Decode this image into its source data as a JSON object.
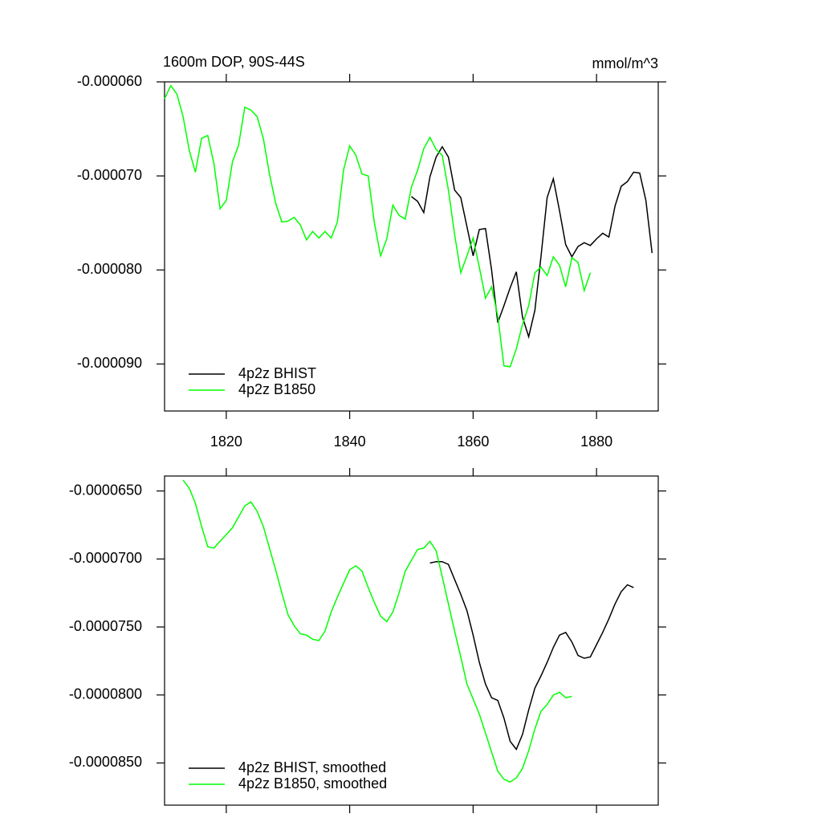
{
  "chart_data": [
    {
      "type": "line",
      "title": "1600m DOP, 90S-44S",
      "units": "mmol/m^3",
      "xlim": [
        1810,
        1890
      ],
      "xticks": [
        1820,
        1840,
        1860,
        1880
      ],
      "xticklabels": true,
      "ylim": [
        -9.5e-05,
        -6e-05
      ],
      "yticks": [
        {
          "value": -6e-05,
          "label": "-0.000060"
        },
        {
          "value": -7e-05,
          "label": "-0.000070"
        },
        {
          "value": -8e-05,
          "label": "-0.000080"
        },
        {
          "value": -9e-05,
          "label": "-0.000090"
        }
      ],
      "legend": "lower left",
      "series": [
        {
          "name": "4p2z BHIST",
          "color": "#000000",
          "x": [
            1850,
            1851,
            1852,
            1853,
            1854,
            1855,
            1856,
            1857,
            1858,
            1859,
            1860,
            1861,
            1862,
            1863,
            1864,
            1865,
            1866,
            1867,
            1868,
            1869,
            1870,
            1871,
            1872,
            1873,
            1874,
            1875,
            1876,
            1877,
            1878,
            1879,
            1880,
            1881,
            1882,
            1883,
            1884,
            1885,
            1886,
            1887,
            1888,
            1889
          ],
          "values": [
            -7.22e-05,
            -7.27e-05,
            -7.39e-05,
            -7.01e-05,
            -6.8e-05,
            -6.69e-05,
            -6.8e-05,
            -7.15e-05,
            -7.23e-05,
            -7.54e-05,
            -7.85e-05,
            -7.57e-05,
            -7.56e-05,
            -8e-05,
            -8.56e-05,
            -8.38e-05,
            -8.19e-05,
            -8.02e-05,
            -8.5e-05,
            -8.71e-05,
            -8.43e-05,
            -7.86e-05,
            -7.23e-05,
            -7.03e-05,
            -7.37e-05,
            -7.73e-05,
            -7.86e-05,
            -7.75e-05,
            -7.71e-05,
            -7.74e-05,
            -7.67e-05,
            -7.61e-05,
            -7.65e-05,
            -7.32e-05,
            -7.11e-05,
            -7.06e-05,
            -6.96e-05,
            -6.97e-05,
            -7.26e-05,
            -7.82e-05
          ]
        },
        {
          "name": "4p2z B1850",
          "color": "#00ff00",
          "x": [
            1810,
            1811,
            1812,
            1813,
            1814,
            1815,
            1816,
            1817,
            1818,
            1819,
            1820,
            1821,
            1822,
            1823,
            1824,
            1825,
            1826,
            1827,
            1828,
            1829,
            1830,
            1831,
            1832,
            1833,
            1834,
            1835,
            1836,
            1837,
            1838,
            1839,
            1840,
            1841,
            1842,
            1843,
            1844,
            1845,
            1846,
            1847,
            1848,
            1849,
            1850,
            1851,
            1852,
            1853,
            1854,
            1855,
            1856,
            1857,
            1858,
            1859,
            1860,
            1861,
            1862,
            1863,
            1864,
            1865,
            1866,
            1867,
            1868,
            1869,
            1870,
            1871,
            1872,
            1873,
            1874,
            1875,
            1876,
            1877,
            1878,
            1879
          ],
          "values": [
            -6.18e-05,
            -6.04e-05,
            -6.13e-05,
            -6.37e-05,
            -6.73e-05,
            -6.96e-05,
            -6.6e-05,
            -6.57e-05,
            -6.87e-05,
            -7.35e-05,
            -7.26e-05,
            -6.85e-05,
            -6.67e-05,
            -6.27e-05,
            -6.3e-05,
            -6.37e-05,
            -6.6e-05,
            -6.98e-05,
            -7.29e-05,
            -7.49e-05,
            -7.48e-05,
            -7.44e-05,
            -7.52e-05,
            -7.68e-05,
            -7.59e-05,
            -7.66e-05,
            -7.59e-05,
            -7.66e-05,
            -7.49e-05,
            -6.94e-05,
            -6.68e-05,
            -6.78e-05,
            -6.98e-05,
            -7e-05,
            -7.5e-05,
            -7.85e-05,
            -7.67e-05,
            -7.31e-05,
            -7.42e-05,
            -7.46e-05,
            -7.12e-05,
            -6.94e-05,
            -6.71e-05,
            -6.59e-05,
            -6.72e-05,
            -6.78e-05,
            -7.15e-05,
            -7.62e-05,
            -8.03e-05,
            -7.85e-05,
            -7.66e-05,
            -7.97e-05,
            -8.3e-05,
            -8.18e-05,
            -8.49e-05,
            -9.02e-05,
            -9.03e-05,
            -8.84e-05,
            -8.58e-05,
            -8.38e-05,
            -8.03e-05,
            -7.97e-05,
            -8.06e-05,
            -7.86e-05,
            -7.95e-05,
            -8.18e-05,
            -7.87e-05,
            -7.92e-05,
            -8.22e-05,
            -8.03e-05
          ]
        }
      ]
    },
    {
      "type": "line",
      "xlim": [
        1810,
        1890
      ],
      "xticks": [
        1820,
        1840,
        1860,
        1880
      ],
      "xticklabels": false,
      "ylim": [
        -8.81e-05,
        -6.39e-05
      ],
      "yticks": [
        {
          "value": -6.5e-05,
          "label": "-0.0000650"
        },
        {
          "value": -7e-05,
          "label": "-0.0000700"
        },
        {
          "value": -7.5e-05,
          "label": "-0.0000750"
        },
        {
          "value": -8e-05,
          "label": "-0.0000800"
        },
        {
          "value": -8.5e-05,
          "label": "-0.0000850"
        }
      ],
      "legend": "lower left",
      "series": [
        {
          "name": "4p2z BHIST, smoothed",
          "color": "#000000",
          "x": [
            1853,
            1854,
            1855,
            1856,
            1857,
            1858,
            1859,
            1860,
            1861,
            1862,
            1863,
            1864,
            1865,
            1866,
            1867,
            1868,
            1869,
            1870,
            1871,
            1872,
            1873,
            1874,
            1875,
            1876,
            1877,
            1878,
            1879,
            1880,
            1881,
            1882,
            1883,
            1884,
            1885,
            1886
          ],
          "values": [
            -7.03e-05,
            -7.02e-05,
            -7.02e-05,
            -7.04e-05,
            -7.15e-05,
            -7.26e-05,
            -7.38e-05,
            -7.56e-05,
            -7.76e-05,
            -7.92e-05,
            -8.02e-05,
            -8.04e-05,
            -8.17e-05,
            -8.34e-05,
            -8.4e-05,
            -8.29e-05,
            -8.11e-05,
            -7.95e-05,
            -7.86e-05,
            -7.76e-05,
            -7.65e-05,
            -7.56e-05,
            -7.54e-05,
            -7.61e-05,
            -7.71e-05,
            -7.73e-05,
            -7.72e-05,
            -7.63e-05,
            -7.54e-05,
            -7.44e-05,
            -7.33e-05,
            -7.24e-05,
            -7.19e-05,
            -7.21e-05
          ]
        },
        {
          "name": "4p2z B1850, smoothed",
          "color": "#00ff00",
          "x": [
            1813,
            1814,
            1815,
            1816,
            1817,
            1818,
            1819,
            1820,
            1821,
            1822,
            1823,
            1824,
            1825,
            1826,
            1827,
            1828,
            1829,
            1830,
            1831,
            1832,
            1833,
            1834,
            1835,
            1836,
            1837,
            1838,
            1839,
            1840,
            1841,
            1842,
            1843,
            1844,
            1845,
            1846,
            1847,
            1848,
            1849,
            1850,
            1851,
            1852,
            1853,
            1854,
            1855,
            1856,
            1857,
            1858,
            1859,
            1860,
            1861,
            1862,
            1863,
            1864,
            1865,
            1866,
            1867,
            1868,
            1869,
            1870,
            1871,
            1872,
            1873,
            1874,
            1875,
            1876
          ],
          "values": [
            -6.42e-05,
            -6.48e-05,
            -6.59e-05,
            -6.76e-05,
            -6.91e-05,
            -6.92e-05,
            -6.87e-05,
            -6.82e-05,
            -6.77e-05,
            -6.69e-05,
            -6.61e-05,
            -6.58e-05,
            -6.65e-05,
            -6.76e-05,
            -6.92e-05,
            -7.08e-05,
            -7.25e-05,
            -7.41e-05,
            -7.49e-05,
            -7.55e-05,
            -7.56e-05,
            -7.59e-05,
            -7.6e-05,
            -7.53e-05,
            -7.39e-05,
            -7.28e-05,
            -7.18e-05,
            -7.08e-05,
            -7.05e-05,
            -7.09e-05,
            -7.21e-05,
            -7.32e-05,
            -7.42e-05,
            -7.46e-05,
            -7.39e-05,
            -7.25e-05,
            -7.09e-05,
            -7.01e-05,
            -6.93e-05,
            -6.92e-05,
            -6.87e-05,
            -6.94e-05,
            -7.13e-05,
            -7.33e-05,
            -7.53e-05,
            -7.72e-05,
            -7.92e-05,
            -8.03e-05,
            -8.14e-05,
            -8.28e-05,
            -8.42e-05,
            -8.56e-05,
            -8.62e-05,
            -8.64e-05,
            -8.61e-05,
            -8.54e-05,
            -8.41e-05,
            -8.25e-05,
            -8.12e-05,
            -8.07e-05,
            -8e-05,
            -7.98e-05,
            -8.02e-05,
            -8.01e-05
          ]
        }
      ]
    }
  ]
}
